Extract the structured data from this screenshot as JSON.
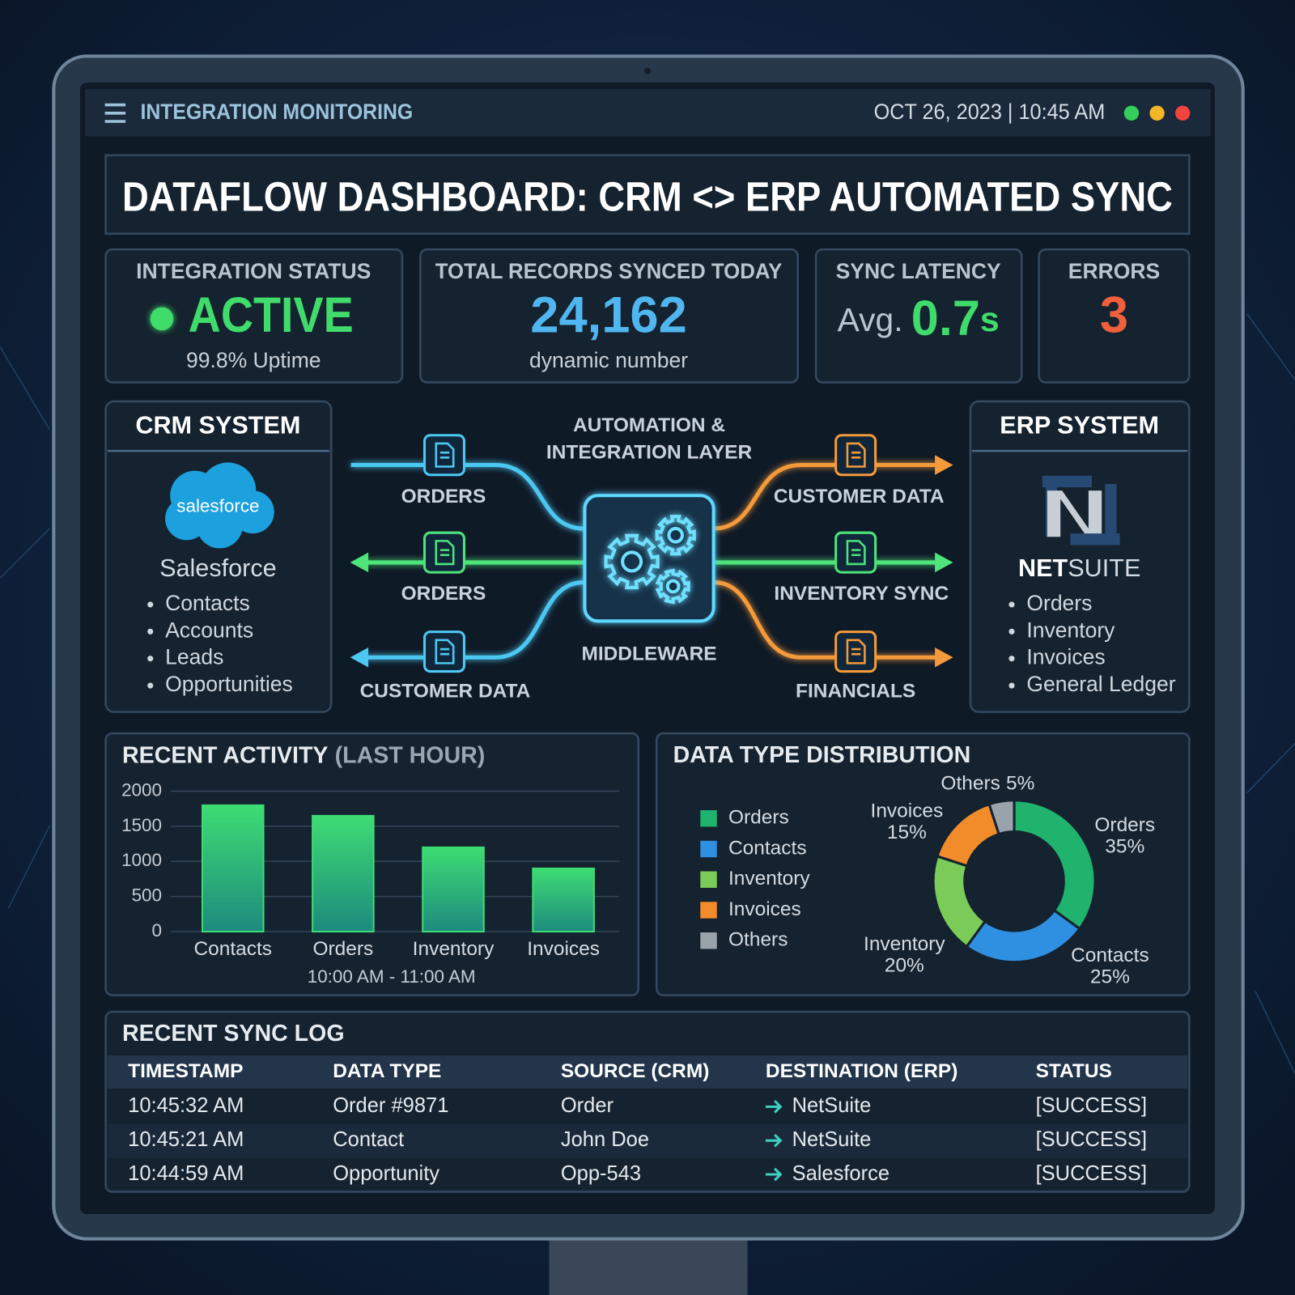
{
  "header": {
    "title": "INTEGRATION MONITORING",
    "datetime": "OCT 26, 2023 | 10:45 AM"
  },
  "dashboard_title": "DATAFLOW DASHBOARD: CRM <> ERP AUTOMATED SYNC",
  "kpis": {
    "status": {
      "label": "INTEGRATION STATUS",
      "value": "ACTIVE",
      "note": "99.8% Uptime"
    },
    "records": {
      "label": "TOTAL RECORDS SYNCED TODAY",
      "value": "24,162",
      "note": "dynamic number"
    },
    "latency": {
      "label": "SYNC LATENCY",
      "prefix": "Avg.",
      "value": "0.7",
      "unit": "s"
    },
    "errors": {
      "label": "ERRORS",
      "value": "3"
    }
  },
  "crm": {
    "title": "CRM SYSTEM",
    "logo": "salesforce",
    "name": "Salesforce",
    "items": [
      "Contacts",
      "Accounts",
      "Leads",
      "Opportunities"
    ]
  },
  "erp": {
    "title": "ERP SYSTEM",
    "name": [
      "NET",
      "SUITE"
    ],
    "items": [
      "Orders",
      "Inventory",
      "Invoices",
      "General Ledger"
    ]
  },
  "flow": {
    "title": [
      "AUTOMATION &",
      "INTEGRATION LAYER"
    ],
    "hub": "MIDDLEWARE",
    "inbound": [
      "ORDERS",
      "ORDERS",
      "CUSTOMER DATA"
    ],
    "outbound": [
      "CUSTOMER DATA",
      "INVENTORY SYNC",
      "FINANCIALS"
    ]
  },
  "chart_data": [
    {
      "type": "bar",
      "title": "RECENT ACTIVITY",
      "subtitle": "(LAST HOUR)",
      "x_label": "10:00 AM - 11:00 AM",
      "categories": [
        "Contacts",
        "Orders",
        "Inventory",
        "Invoices"
      ],
      "values": [
        1800,
        1650,
        1200,
        900
      ],
      "color": "#3ddc73",
      "ylim": [
        0,
        2000
      ],
      "yticks": [
        0,
        500,
        1000,
        1500,
        2000
      ],
      "grid": true
    },
    {
      "type": "donut",
      "title": "DATA TYPE DISTRIBUTION",
      "categories": [
        "Orders",
        "Contacts",
        "Inventory",
        "Invoices",
        "Others"
      ],
      "values": [
        35,
        25,
        20,
        15,
        5
      ],
      "value_labels": [
        "35%",
        "25%",
        "20%",
        "15%",
        "5%"
      ],
      "colors": [
        "#1fb36e",
        "#2f8fe0",
        "#7acb57",
        "#f28c2a",
        "#9aa3ab"
      ],
      "legend": "left"
    }
  ],
  "sync_log": {
    "title": "RECENT SYNC LOG",
    "columns": [
      "TIMESTAMP",
      "DATA TYPE",
      "SOURCE (CRM)",
      "DESTINATION (ERP)",
      "STATUS"
    ],
    "rows": [
      [
        "10:45:32 AM",
        "Order #9871",
        "Order",
        "NetSuite",
        "[SUCCESS]"
      ],
      [
        "10:45:21 AM",
        "Contact",
        "John Doe",
        "NetSuite",
        "[SUCCESS]"
      ],
      [
        "10:44:59 AM",
        "Opportunity",
        "Opp-543",
        "Salesforce",
        "[SUCCESS]"
      ]
    ]
  }
}
